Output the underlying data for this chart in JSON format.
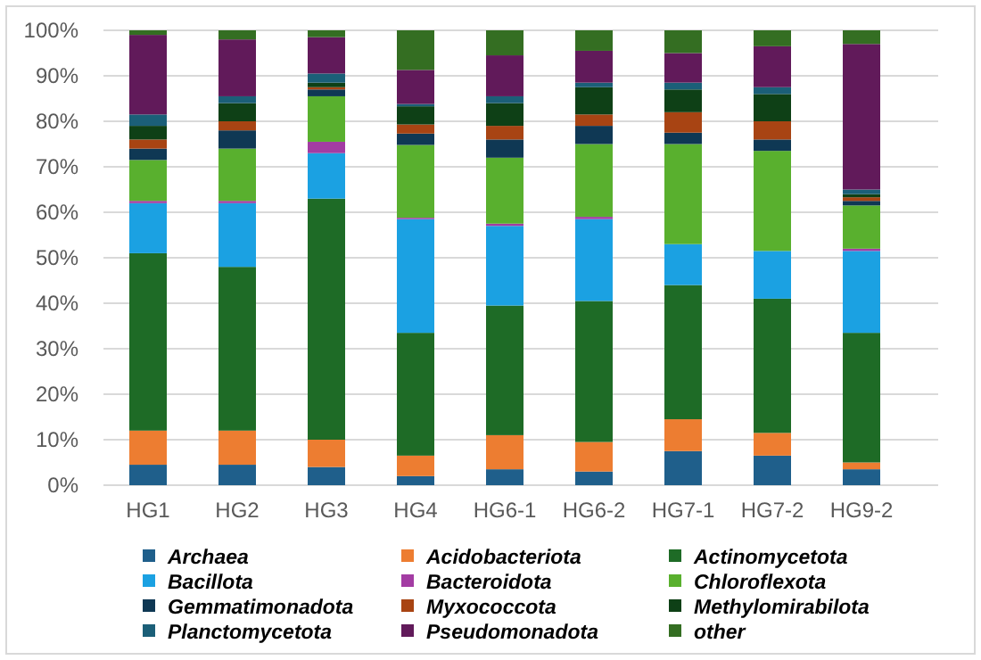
{
  "chart_data": {
    "type": "bar",
    "stacked": true,
    "categories": [
      "HG1",
      "HG2",
      "HG3",
      "HG4",
      "HG6-1",
      "HG6-2",
      "HG7-1",
      "HG7-2",
      "HG9-2"
    ],
    "series": [
      {
        "name": "Archaea",
        "color": "#1f5f8b",
        "values": [
          4.5,
          4.5,
          4,
          2,
          3.5,
          3,
          7.5,
          6.5,
          3.5
        ]
      },
      {
        "name": "Acidobacteriota",
        "color": "#ed7d31",
        "values": [
          7.5,
          7.5,
          6,
          4.5,
          7.5,
          6.5,
          7,
          5,
          1.5
        ]
      },
      {
        "name": "Actinomycetota",
        "color": "#1e6b26",
        "values": [
          39,
          36,
          53,
          27,
          28.5,
          31,
          29.5,
          29.5,
          28.5
        ]
      },
      {
        "name": "Bacillota",
        "color": "#1ba1e2",
        "values": [
          11,
          14,
          10,
          25,
          17.5,
          18,
          9,
          10.5,
          18
        ]
      },
      {
        "name": "Bacteroidota",
        "color": "#a33ca3",
        "values": [
          0.5,
          0.5,
          2.5,
          0.3,
          0.5,
          0.5,
          0,
          0,
          0.5
        ]
      },
      {
        "name": "Chloroflexota",
        "color": "#59b02e",
        "values": [
          9,
          11.5,
          10,
          16,
          14.5,
          16,
          22,
          22,
          9.5
        ]
      },
      {
        "name": "Gemmatimonadota",
        "color": "#0f3854",
        "values": [
          2.5,
          4,
          1.5,
          2.5,
          4,
          4,
          2.5,
          2.5,
          1
        ]
      },
      {
        "name": "Myxococcota",
        "color": "#a84413",
        "values": [
          2,
          2,
          0.5,
          2,
          3,
          2.5,
          4.5,
          4,
          0.8
        ]
      },
      {
        "name": "Methylomirabilota",
        "color": "#0e4016",
        "values": [
          3,
          4,
          1,
          4,
          5,
          6,
          5,
          6,
          0.7
        ]
      },
      {
        "name": "Planctomycetota",
        "color": "#1b5f78",
        "values": [
          2.5,
          1.5,
          2,
          0.5,
          1.5,
          1,
          1.5,
          1.5,
          1
        ]
      },
      {
        "name": "Pseudomonadota",
        "color": "#611a5a",
        "values": [
          17.5,
          12.5,
          8,
          7.5,
          9,
          7,
          6.5,
          9,
          32
        ]
      },
      {
        "name": "other",
        "color": "#346e22",
        "values": [
          1,
          2,
          1.5,
          8.7,
          5.5,
          4.5,
          5,
          3.5,
          3
        ]
      }
    ],
    "ylim": [
      0,
      100
    ],
    "yticks": [
      {
        "value": 0,
        "label": "0%"
      },
      {
        "value": 10,
        "label": "10%"
      },
      {
        "value": 20,
        "label": "20%"
      },
      {
        "value": 30,
        "label": "30%"
      },
      {
        "value": 40,
        "label": "40%"
      },
      {
        "value": 50,
        "label": "50%"
      },
      {
        "value": 60,
        "label": "60%"
      },
      {
        "value": 70,
        "label": "70%"
      },
      {
        "value": 80,
        "label": "80%"
      },
      {
        "value": 90,
        "label": "90%"
      },
      {
        "value": 100,
        "label": "100%"
      }
    ],
    "grid": "y",
    "legend": "bottom"
  }
}
